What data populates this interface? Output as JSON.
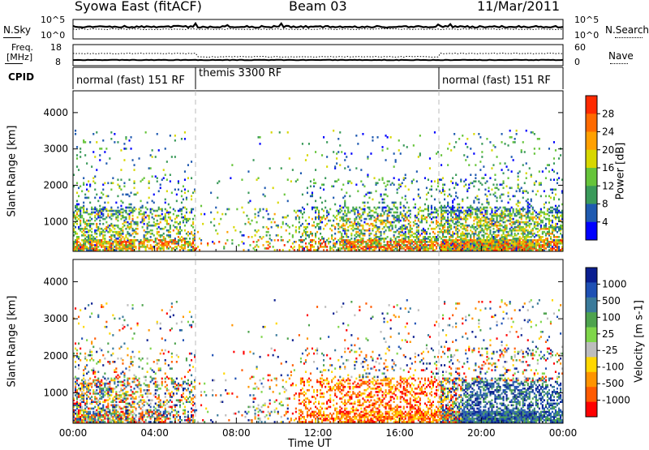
{
  "header": {
    "station": "Syowa East (fitACF)",
    "beam": "Beam 03",
    "date": "11/Mar/2011"
  },
  "colors": {
    "power_scale": [
      "#0000ff",
      "#1f5ab0",
      "#3a9a5a",
      "#66c43a",
      "#d7d700",
      "#ffa000",
      "#ff6a00",
      "#ff2a00"
    ],
    "velocity_scale": [
      "#ff0000",
      "#ff5a00",
      "#ff9400",
      "#ffd700",
      "#bdbdbd",
      "#7fd64a",
      "#4ea34e",
      "#3a7a9a",
      "#1e50b4",
      "#0a1e90"
    ]
  },
  "chart_data": [
    {
      "type": "line",
      "panel": "noise",
      "left_label": "N.Sky",
      "right_label": "N.Search",
      "left_ticks": [
        "10^5",
        "10^0"
      ],
      "right_ticks": [
        "10^5",
        "10^0"
      ],
      "series": [
        {
          "name": "N.Sky",
          "style": "solid"
        },
        {
          "name": "N.Search",
          "style": "dotted"
        }
      ]
    },
    {
      "type": "line",
      "panel": "freq_nave",
      "left_label_top": "Freq.",
      "left_label_bottom": "[MHz]",
      "right_label": "Nave",
      "left_ticks": [
        "18",
        "8"
      ],
      "right_ticks": [
        "60",
        "0"
      ],
      "series": [
        {
          "name": "Freq.",
          "style": "solid"
        },
        {
          "name": "Nave",
          "style": "dotted"
        }
      ]
    },
    {
      "type": "table",
      "panel": "cpid",
      "label": "CPID",
      "segments": [
        {
          "start": 0.0,
          "end": 6.0,
          "text": "normal (fast) 151 RF"
        },
        {
          "start": 6.0,
          "end": 18.0,
          "text": "themis 3300 RF"
        },
        {
          "start": 18.0,
          "end": 24.0,
          "text": "normal (fast) 151 RF"
        }
      ]
    },
    {
      "type": "heatmap",
      "panel": "power",
      "ylabel": "Slant Range [km]",
      "yticks": [
        1000,
        2000,
        3000,
        4000
      ],
      "ylim": [
        180,
        4600
      ],
      "xlim": [
        0,
        24
      ],
      "colorbar_label": "Power [dB]",
      "colorbar_ticks": [
        "28",
        "24",
        "20",
        "16",
        "12",
        "8",
        "4"
      ]
    },
    {
      "type": "heatmap",
      "panel": "velocity",
      "ylabel": "Slant Range [km]",
      "yticks": [
        1000,
        2000,
        3000,
        4000
      ],
      "ylim": [
        180,
        4600
      ],
      "xlim": [
        0,
        24
      ],
      "xticks": [
        "00:00",
        "04:00",
        "08:00",
        "12:00",
        "16:00",
        "20:00",
        "00:00"
      ],
      "xlabel": "Time UT",
      "colorbar_label": "Velocity [m s-1]",
      "colorbar_ticks": [
        "1000",
        "500",
        "100",
        "25",
        "-25",
        "-100",
        "-500",
        "-1000"
      ]
    }
  ]
}
